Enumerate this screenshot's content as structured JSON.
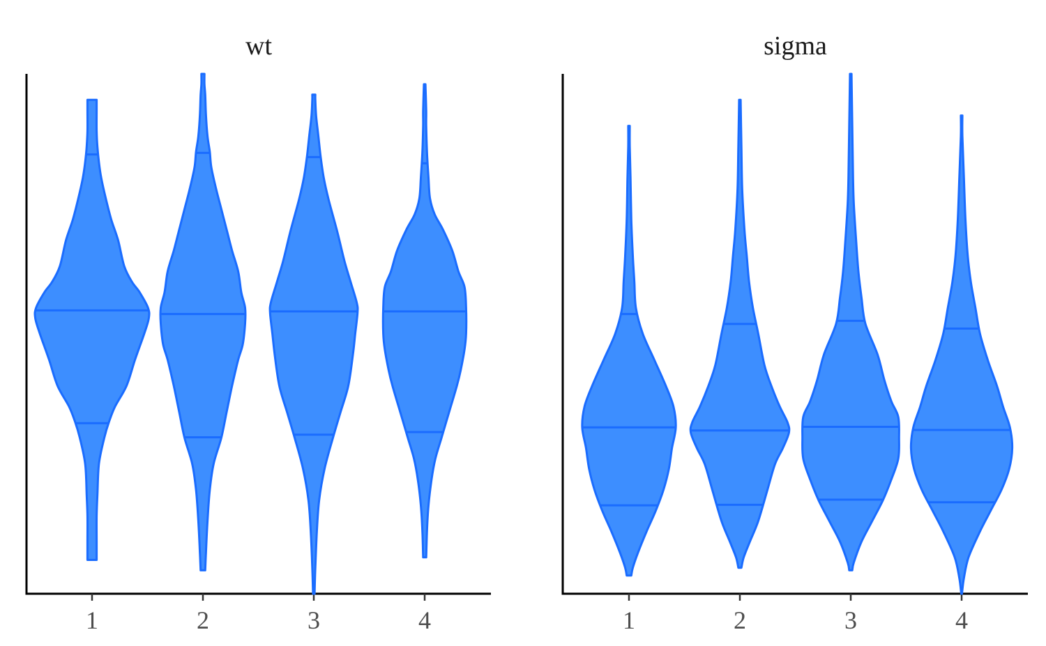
{
  "colors": {
    "violin_fill": "#3d8eff",
    "violin_stroke": "#1a6cff",
    "axis": "#000000",
    "text": "#1a1a1a",
    "tick_text": "#4d4d4d"
  },
  "chart_data": [
    {
      "type": "violin",
      "title": "wt",
      "categories": [
        "1",
        "2",
        "3",
        "4"
      ],
      "y_axis_labels": "none",
      "ylim": [
        0,
        100
      ],
      "grid": false,
      "legend": "none",
      "violins": [
        {
          "category": "1",
          "quantiles": [
            32.8,
            54.5,
            84.5
          ],
          "profile": [
            [
              6.5,
              0.6
            ],
            [
              10,
              0.6
            ],
            [
              15,
              0.6
            ],
            [
              19,
              0.7
            ],
            [
              25,
              0.9
            ],
            [
              30,
              1.6
            ],
            [
              33,
              2.2
            ],
            [
              36,
              3.0
            ],
            [
              40,
              4.5
            ],
            [
              45,
              5.6
            ],
            [
              50,
              6.8
            ],
            [
              53,
              7.4
            ],
            [
              55,
              7.3
            ],
            [
              58,
              6.2
            ],
            [
              60,
              5.2
            ],
            [
              63,
              4.2
            ],
            [
              68,
              3.4
            ],
            [
              72,
              2.5
            ],
            [
              76,
              1.8
            ],
            [
              80,
              1.2
            ],
            [
              83,
              0.9
            ],
            [
              86,
              0.7
            ],
            [
              89,
              0.6
            ],
            [
              93,
              0.6
            ],
            [
              95,
              0.6
            ]
          ]
        },
        {
          "category": "2",
          "quantiles": [
            30.1,
            53.8,
            84.8
          ],
          "profile": [
            [
              4.5,
              0.3
            ],
            [
              8,
              0.4
            ],
            [
              14,
              0.6
            ],
            [
              20,
              0.9
            ],
            [
              25,
              1.4
            ],
            [
              30,
              2.4
            ],
            [
              35,
              3.1
            ],
            [
              40,
              3.8
            ],
            [
              45,
              4.6
            ],
            [
              48,
              5.2
            ],
            [
              52,
              5.5
            ],
            [
              55,
              5.5
            ],
            [
              58,
              5.0
            ],
            [
              62,
              4.6
            ],
            [
              66,
              3.8
            ],
            [
              70,
              3.1
            ],
            [
              74,
              2.4
            ],
            [
              78,
              1.7
            ],
            [
              82,
              1.1
            ],
            [
              85,
              0.9
            ],
            [
              88,
              0.6
            ],
            [
              92,
              0.4
            ],
            [
              96,
              0.3
            ],
            [
              98,
              0.2
            ],
            [
              100,
              0.2
            ]
          ]
        },
        {
          "category": "3",
          "quantiles": [
            30.6,
            54.3,
            84.0
          ],
          "profile": [
            [
              0,
              0.1
            ],
            [
              5,
              0.2
            ],
            [
              12,
              0.4
            ],
            [
              18,
              0.7
            ],
            [
              24,
              1.4
            ],
            [
              30,
              2.5
            ],
            [
              35,
              3.5
            ],
            [
              40,
              4.5
            ],
            [
              46,
              5.1
            ],
            [
              50,
              5.4
            ],
            [
              54,
              5.7
            ],
            [
              56,
              5.6
            ],
            [
              60,
              4.8
            ],
            [
              64,
              4.0
            ],
            [
              70,
              3.0
            ],
            [
              76,
              1.9
            ],
            [
              80,
              1.3
            ],
            [
              84,
              0.9
            ],
            [
              88,
              0.6
            ],
            [
              92,
              0.3
            ],
            [
              95,
              0.2
            ],
            [
              96,
              0.2
            ]
          ]
        },
        {
          "category": "4",
          "quantiles": [
            31.1,
            54.3,
            82.8
          ],
          "profile": [
            [
              7,
              0.2
            ],
            [
              12,
              0.3
            ],
            [
              17,
              0.5
            ],
            [
              22,
              0.9
            ],
            [
              26,
              1.4
            ],
            [
              30,
              2.2
            ],
            [
              35,
              3.2
            ],
            [
              40,
              4.2
            ],
            [
              43,
              4.7
            ],
            [
              47,
              5.2
            ],
            [
              50,
              5.4
            ],
            [
              55,
              5.4
            ],
            [
              59,
              5.2
            ],
            [
              62,
              4.4
            ],
            [
              66,
              3.6
            ],
            [
              70,
              2.4
            ],
            [
              73,
              1.3
            ],
            [
              76,
              0.7
            ],
            [
              80,
              0.5
            ],
            [
              85,
              0.3
            ],
            [
              90,
              0.2
            ],
            [
              93,
              0.2
            ],
            [
              98,
              0.1
            ]
          ]
        }
      ]
    },
    {
      "type": "violin",
      "title": "sigma",
      "categories": [
        "1",
        "2",
        "3",
        "4"
      ],
      "y_axis_labels": "none",
      "ylim": [
        0,
        100
      ],
      "grid": false,
      "legend": "none",
      "violins": [
        {
          "category": "1",
          "quantiles": [
            17.0,
            32.0,
            53.8
          ],
          "profile": [
            [
              3.5,
              0.3
            ],
            [
              5,
              0.5
            ],
            [
              8,
              1.2
            ],
            [
              12,
              2.3
            ],
            [
              16,
              3.5
            ],
            [
              20,
              4.5
            ],
            [
              24,
              5.2
            ],
            [
              28,
              5.6
            ],
            [
              32,
              6.1
            ],
            [
              36,
              5.8
            ],
            [
              40,
              4.8
            ],
            [
              45,
              3.3
            ],
            [
              50,
              1.8
            ],
            [
              55,
              0.9
            ],
            [
              60,
              0.7
            ],
            [
              65,
              0.5
            ],
            [
              72,
              0.3
            ],
            [
              80,
              0.2
            ],
            [
              86,
              0.1
            ],
            [
              90,
              0.1
            ]
          ]
        },
        {
          "category": "2",
          "quantiles": [
            17.1,
            31.4,
            51.9
          ],
          "profile": [
            [
              5,
              0.2
            ],
            [
              7,
              0.5
            ],
            [
              10,
              1.3
            ],
            [
              14,
              2.4
            ],
            [
              20,
              3.6
            ],
            [
              25,
              4.6
            ],
            [
              28,
              5.6
            ],
            [
              31,
              6.4
            ],
            [
              33,
              6.2
            ],
            [
              36,
              5.2
            ],
            [
              40,
              4.1
            ],
            [
              44,
              3.2
            ],
            [
              50,
              2.4
            ],
            [
              55,
              1.7
            ],
            [
              60,
              1.2
            ],
            [
              65,
              0.9
            ],
            [
              70,
              0.6
            ],
            [
              78,
              0.3
            ],
            [
              86,
              0.2
            ],
            [
              95,
              0.1
            ]
          ]
        },
        {
          "category": "3",
          "quantiles": [
            18.1,
            32.1,
            52.5
          ],
          "profile": [
            [
              4.5,
              0.2
            ],
            [
              6,
              0.4
            ],
            [
              10,
              1.4
            ],
            [
              14,
              2.8
            ],
            [
              18,
              4.2
            ],
            [
              22,
              5.3
            ],
            [
              26,
              6.2
            ],
            [
              30,
              6.3
            ],
            [
              34,
              6.2
            ],
            [
              37,
              5.3
            ],
            [
              41,
              4.4
            ],
            [
              46,
              3.5
            ],
            [
              52,
              1.9
            ],
            [
              57,
              1.4
            ],
            [
              62,
              1.0
            ],
            [
              68,
              0.7
            ],
            [
              75,
              0.4
            ],
            [
              80,
              0.3
            ],
            [
              90,
              0.2
            ],
            [
              100,
              0.1
            ]
          ]
        },
        {
          "category": "4",
          "quantiles": [
            17.6,
            31.5,
            51.0
          ],
          "profile": [
            [
              0,
              0.05
            ],
            [
              3,
              0.3
            ],
            [
              7,
              0.9
            ],
            [
              12,
              2.4
            ],
            [
              16,
              3.8
            ],
            [
              20,
              5.2
            ],
            [
              24,
              6.2
            ],
            [
              28,
              6.6
            ],
            [
              32,
              6.3
            ],
            [
              36,
              5.4
            ],
            [
              40,
              4.6
            ],
            [
              45,
              3.4
            ],
            [
              50,
              2.4
            ],
            [
              55,
              1.8
            ],
            [
              60,
              1.2
            ],
            [
              65,
              0.8
            ],
            [
              72,
              0.5
            ],
            [
              80,
              0.3
            ],
            [
              88,
              0.1
            ],
            [
              92,
              0.1
            ]
          ]
        }
      ]
    }
  ]
}
